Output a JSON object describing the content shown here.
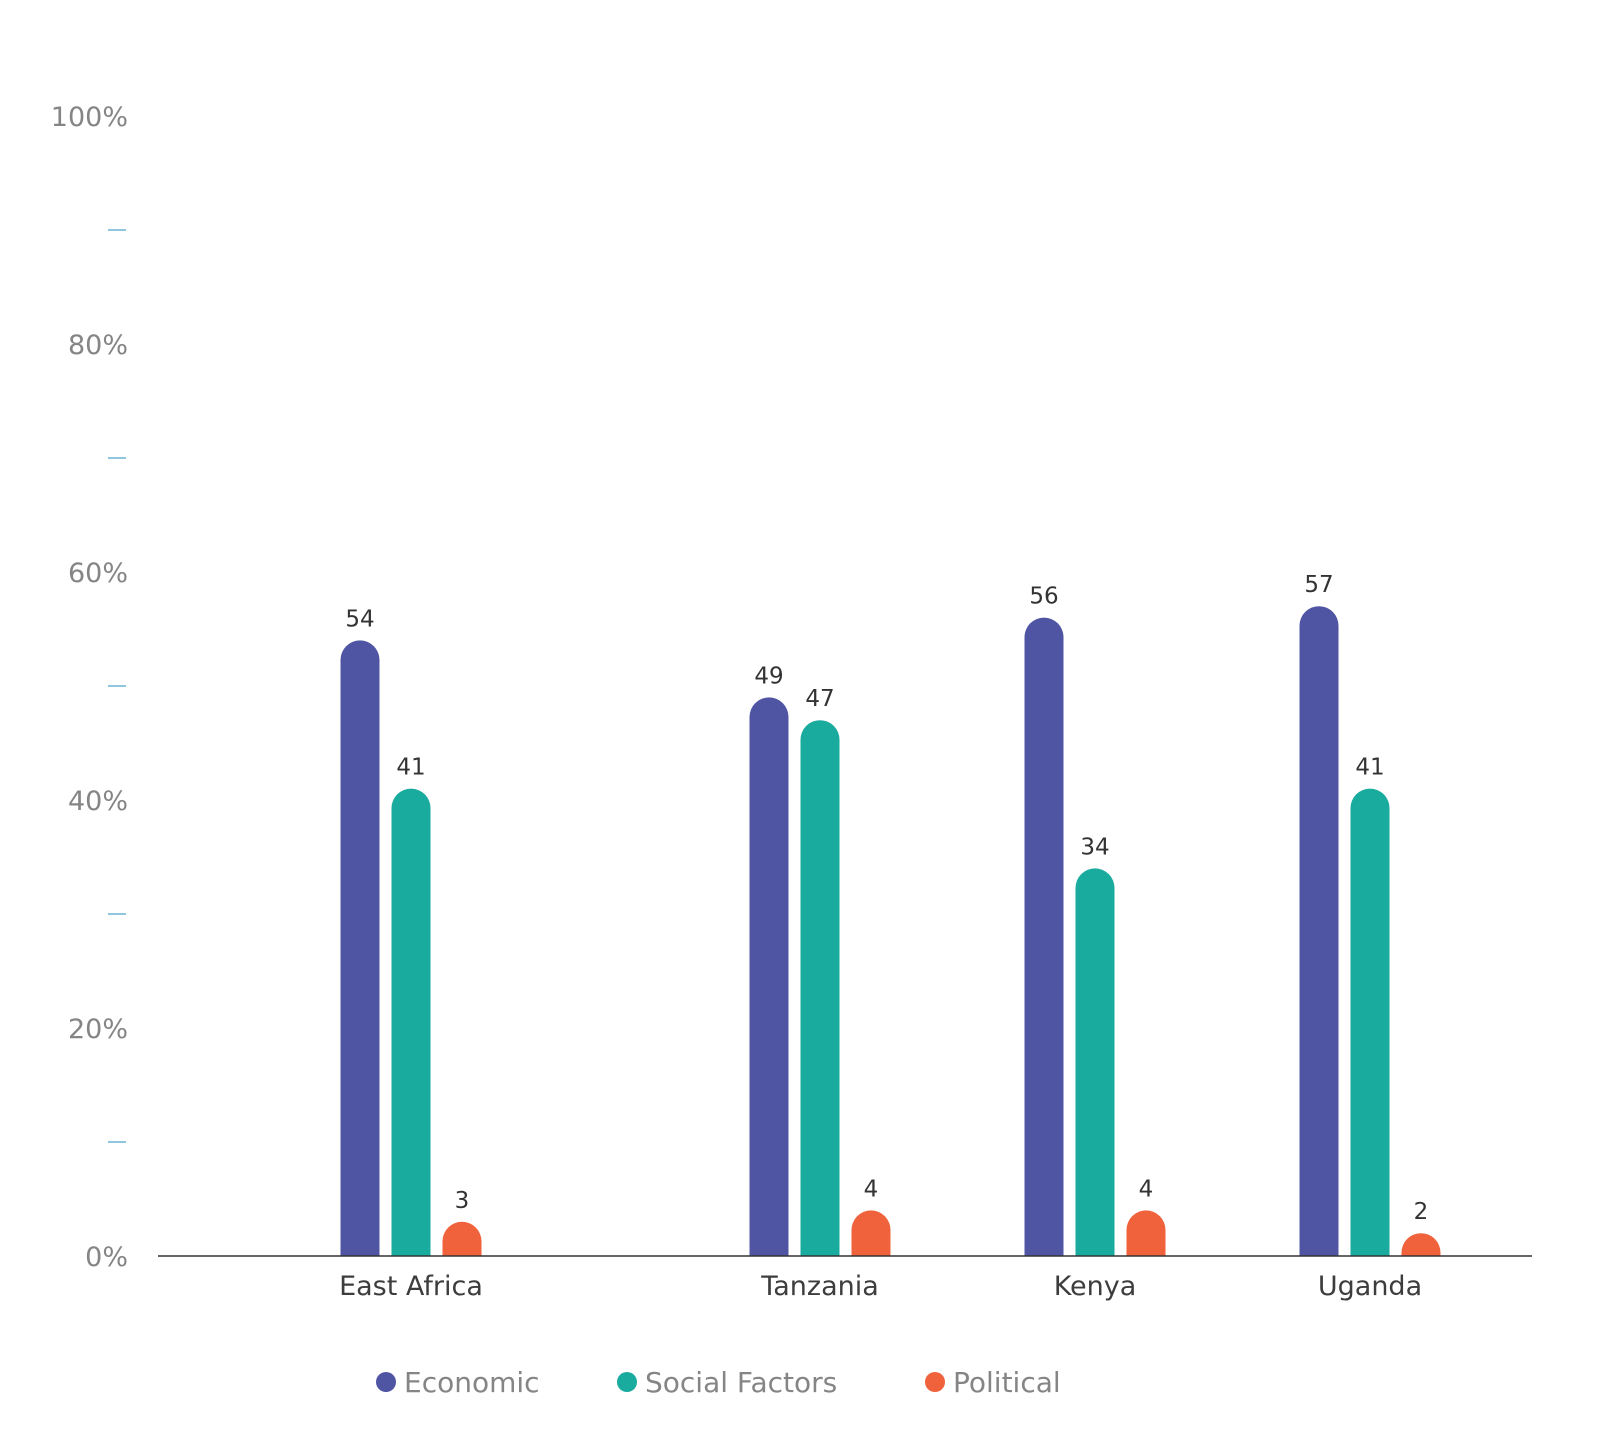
{
  "chart_data": {
    "type": "bar",
    "categories": [
      "East Africa",
      "Tanzania",
      "Kenya",
      "Uganda"
    ],
    "series": [
      {
        "name": "Economic",
        "values": [
          54,
          49,
          56,
          57
        ],
        "color": "#4f55a3"
      },
      {
        "name": "Social Factors",
        "values": [
          41,
          47,
          34,
          41
        ],
        "color": "#1aab9f"
      },
      {
        "name": "Political",
        "values": [
          3,
          4,
          4,
          2
        ],
        "color": "#f0623b"
      }
    ],
    "y_ticks": [
      "0%",
      "20%",
      "40%",
      "60%",
      "80%",
      "100%"
    ],
    "ylim": [
      0,
      100
    ],
    "minor_ticks": [
      10,
      30,
      50,
      70,
      90
    ],
    "axis_color": "#333333",
    "minor_tick_color": "#8fc6e0",
    "legend_position": "bottom",
    "grid": false,
    "data_labels": true,
    "bar_style": "rounded-top"
  }
}
